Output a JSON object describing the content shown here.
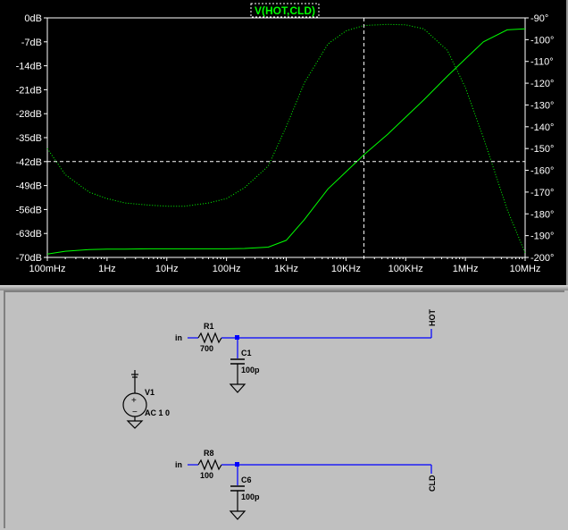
{
  "plot": {
    "trace_title": "V(HOT,CLD)",
    "colors": {
      "background": "#000000",
      "trace": "#00ff00",
      "grid": "#ffffff"
    }
  },
  "chart_data": {
    "type": "line",
    "title": "V(HOT,CLD)",
    "x_scale": "log",
    "x_ticks": [
      "100mHz",
      "1Hz",
      "10Hz",
      "100Hz",
      "1KHz",
      "10KHz",
      "100KHz",
      "1MHz",
      "10MHz"
    ],
    "y_ticks_left": [
      "0dB",
      "-7dB",
      "-14dB",
      "-21dB",
      "-28dB",
      "-35dB",
      "-42dB",
      "-49dB",
      "-56dB",
      "-63dB",
      "-70dB"
    ],
    "y_ticks_right": [
      "-90°",
      "-100°",
      "-110°",
      "-120°",
      "-130°",
      "-140°",
      "-150°",
      "-160°",
      "-170°",
      "-180°",
      "-190°",
      "-200°"
    ],
    "xlim_hz": [
      0.1,
      10000000
    ],
    "ylim_left_db": [
      -70,
      0
    ],
    "ylim_right_deg": [
      -200,
      -90
    ],
    "cursor": {
      "x_hz": 20000,
      "y_db": -42
    },
    "series": [
      {
        "axis": "left",
        "style": "solid",
        "x": [
          0.1,
          0.2,
          0.5,
          1,
          2,
          5,
          10,
          20,
          50,
          100,
          200,
          500,
          1000,
          2000,
          5000,
          10000,
          20000,
          50000,
          100000,
          200000,
          500000,
          1000000,
          2000000,
          5000000,
          10000000
        ],
        "y": [
          -69,
          -68.2,
          -67.7,
          -67.6,
          -67.6,
          -67.5,
          -67.5,
          -67.5,
          -67.5,
          -67.5,
          -67.4,
          -67,
          -65,
          -59,
          -50,
          -45,
          -40,
          -34,
          -29,
          -24,
          -17,
          -12,
          -7,
          -3.5,
          -3.2
        ]
      },
      {
        "axis": "right",
        "style": "dotted",
        "x": [
          0.1,
          0.2,
          0.5,
          1,
          2,
          5,
          10,
          20,
          50,
          100,
          200,
          500,
          1000,
          2000,
          5000,
          10000,
          20000,
          50000,
          100000,
          200000,
          500000,
          1000000,
          2000000,
          5000000,
          10000000
        ],
        "y": [
          -150,
          -162,
          -170,
          -173,
          -175,
          -176,
          -176.5,
          -176.5,
          -175,
          -173,
          -168,
          -158,
          -140,
          -120,
          -102,
          -96,
          -93.5,
          -93,
          -93.2,
          -95,
          -105,
          -122,
          -145,
          -178,
          -198
        ]
      }
    ]
  },
  "schematic": {
    "source": {
      "name": "V1",
      "value": "AC 1 0"
    },
    "upper": {
      "net_in": "in",
      "r_name": "R1",
      "r_value": "700",
      "c_name": "C1",
      "c_value": "100p",
      "net_out": "HOT"
    },
    "lower": {
      "net_in": "in",
      "r_name": "R8",
      "r_value": "100",
      "c_name": "C6",
      "c_value": "100p",
      "net_out": "CLD"
    }
  }
}
